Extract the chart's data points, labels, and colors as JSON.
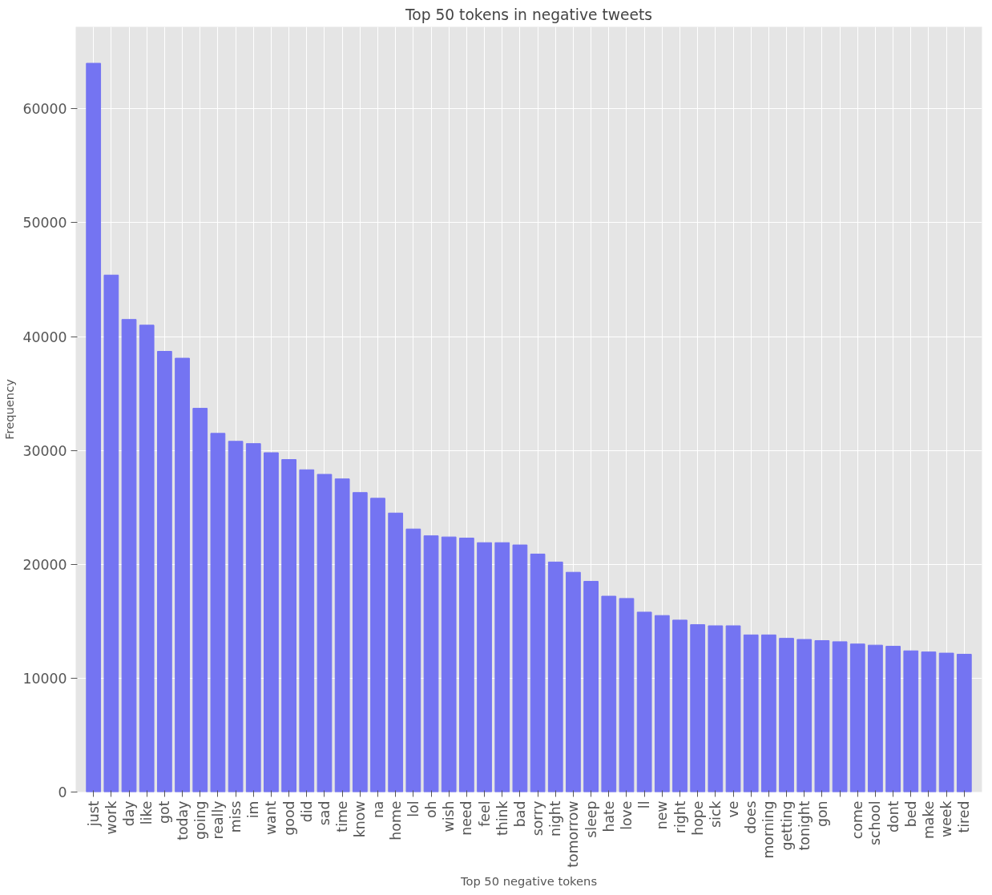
{
  "chart_data": {
    "type": "bar",
    "title": "Top 50 tokens in negative tweets",
    "xlabel": "Top 50 negative tokens",
    "ylabel": "Frequency",
    "categories": [
      "just",
      "work",
      "day",
      "like",
      "got",
      "today",
      "going",
      "really",
      "miss",
      "im",
      "want",
      "good",
      "did",
      "sad",
      "time",
      "know",
      "na",
      "home",
      "lol",
      "oh",
      "wish",
      "need",
      "feel",
      "think",
      "bad",
      "sorry",
      "night",
      "tomorrow",
      "sleep",
      "hate",
      "love",
      "ll",
      "new",
      "right",
      "hope",
      "sick",
      "ve",
      "does",
      "morning",
      "getting",
      "tonight",
      "gon",
      null,
      "come",
      "school",
      "dont",
      "bed",
      "make",
      "week",
      "tired"
    ],
    "values": [
      64000,
      45400,
      41500,
      41000,
      38700,
      38100,
      33700,
      31500,
      30800,
      30600,
      29800,
      29200,
      28300,
      27900,
      27500,
      26300,
      25800,
      24500,
      23100,
      22500,
      22400,
      22300,
      21900,
      21900,
      21700,
      20900,
      20200,
      19300,
      18500,
      17200,
      17000,
      15800,
      15500,
      15100,
      14700,
      14600,
      14600,
      13800,
      13800,
      13500,
      13400,
      13300,
      13200,
      13000,
      12900,
      12800,
      12400,
      12300,
      12200,
      12100
    ],
    "color": "#7474f2",
    "ylim": [
      0,
      67200
    ],
    "yticks": [
      0,
      10000,
      20000,
      30000,
      40000,
      50000,
      60000
    ],
    "grid": true
  }
}
